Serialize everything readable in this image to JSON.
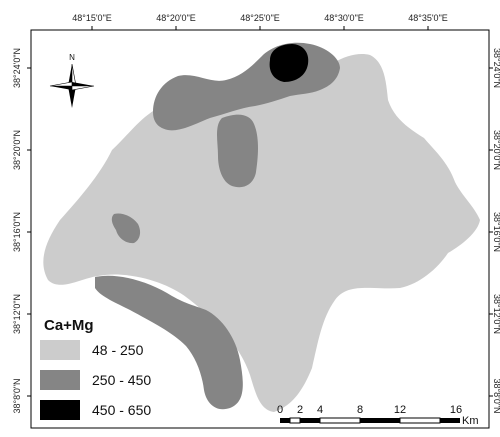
{
  "map": {
    "longitude_labels": [
      "48°15'0\"E",
      "48°20'0\"E",
      "48°25'0\"E",
      "48°30'0\"E",
      "48°35'0\"E"
    ],
    "latitude_labels": [
      "38°24'0\"N",
      "38°20'0\"N",
      "38°16'0\"N",
      "38°12'0\"N",
      "38°8'0\"N"
    ],
    "north_arrow_label": "N",
    "legend": {
      "title": "Ca+Mg",
      "items": [
        {
          "label": "48 - 250",
          "color": "#cccccc"
        },
        {
          "label": "250 - 450",
          "color": "#858585"
        },
        {
          "label": "450 - 650",
          "color": "#000000"
        }
      ]
    },
    "scale_bar": {
      "ticks": [
        "0",
        "2",
        "4",
        "8",
        "12",
        "16"
      ],
      "unit": "Km"
    },
    "colors": {
      "low": "#cccccc",
      "mid": "#858585",
      "high": "#000000",
      "frame": "#000000"
    }
  }
}
